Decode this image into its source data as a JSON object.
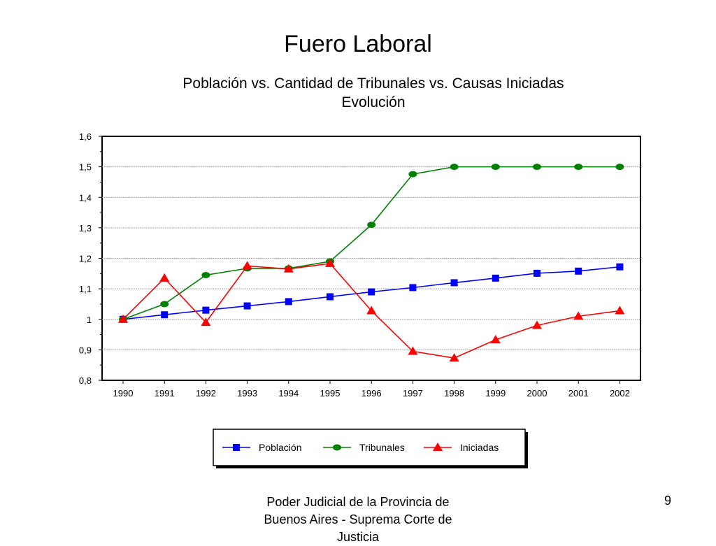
{
  "slide": {
    "title": "Fuero Laboral",
    "footer": "Poder Judicial de la Provincia de Buenos Aires - Suprema Corte de Justicia",
    "page_number": "9"
  },
  "chart_data": {
    "type": "line",
    "title": "Población vs. Cantidad de Tribunales vs. Causas Iniciadas",
    "subtitle": "Evolución",
    "xlabel": "",
    "ylabel": "",
    "x": [
      "1990",
      "1991",
      "1992",
      "1993",
      "1994",
      "1995",
      "1996",
      "1997",
      "1998",
      "1999",
      "2000",
      "2001",
      "2002"
    ],
    "ylim": [
      0.8,
      1.6
    ],
    "yticks": [
      "0,8",
      "0,9",
      "1",
      "1,1",
      "1,2",
      "1,3",
      "1,4",
      "1,5",
      "1,6"
    ],
    "grid": true,
    "legend_position": "bottom",
    "series": [
      {
        "name": "Población",
        "marker": "square",
        "color": "#0000ff",
        "values": [
          1.0,
          1.015,
          1.03,
          1.044,
          1.058,
          1.074,
          1.09,
          1.104,
          1.12,
          1.135,
          1.151,
          1.158,
          1.172
        ]
      },
      {
        "name": "Tribunales",
        "marker": "circle",
        "color": "#008000",
        "values": [
          1.0,
          1.05,
          1.145,
          1.167,
          1.167,
          1.19,
          1.31,
          1.476,
          1.5,
          1.5,
          1.5,
          1.5,
          1.5
        ]
      },
      {
        "name": "Iniciadas",
        "marker": "triangle",
        "color": "#ff0000",
        "values": [
          1.0,
          1.135,
          0.99,
          1.175,
          1.165,
          1.183,
          1.028,
          0.895,
          0.873,
          0.933,
          0.98,
          1.01,
          1.028
        ]
      }
    ]
  }
}
